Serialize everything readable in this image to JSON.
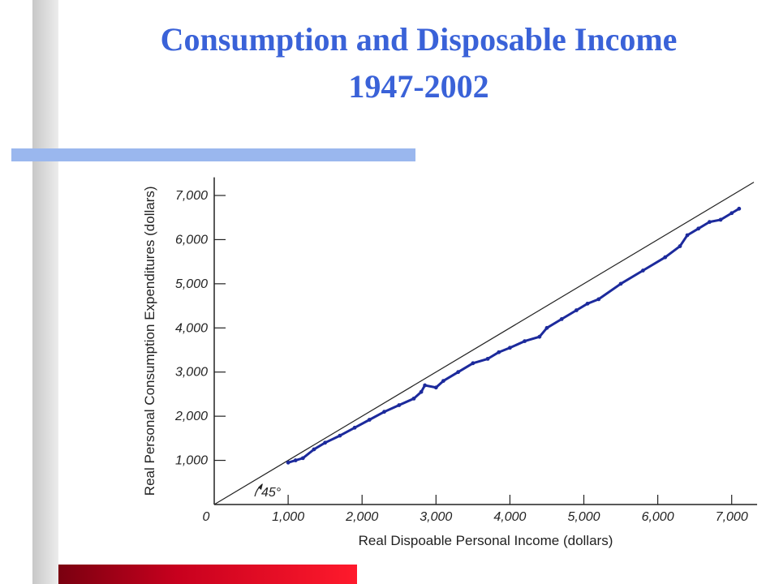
{
  "title": {
    "line1": "Consumption and Disposable Income",
    "line2": "1947-2002"
  },
  "colors": {
    "title": "#3a62d8",
    "accent_bar": "#9ab7ee",
    "series": "#1c2a9c",
    "red_bar": "#c8001e"
  },
  "chart_data": {
    "type": "line",
    "xlabel": "Real Dispoable Personal Income (dollars)",
    "ylabel": "Real Personal Consumption Expenditures (dollars)",
    "xlim": [
      0,
      7300
    ],
    "ylim": [
      0,
      7300
    ],
    "xticks": [
      1000,
      2000,
      3000,
      4000,
      5000,
      6000,
      7000
    ],
    "xtick_labels": [
      "1,000",
      "2,000",
      "3,000",
      "4,000",
      "5,000",
      "6,000",
      "7,000"
    ],
    "yticks": [
      1000,
      2000,
      3000,
      4000,
      5000,
      6000,
      7000
    ],
    "ytick_labels": [
      "1,000",
      "2,000",
      "3,000",
      "4,000",
      "5,000",
      "6,000",
      "7,000"
    ],
    "origin_label": "0",
    "reference_line": {
      "label": "45°",
      "slope": 1
    },
    "series": [
      {
        "x": [
          1000,
          1100,
          1200,
          1350,
          1500,
          1700,
          1900,
          2100,
          2300,
          2500,
          2700,
          2800,
          2850,
          3000,
          3100,
          3300,
          3500,
          3700,
          3850,
          4000,
          4200,
          4400,
          4500,
          4700,
          4900,
          5050,
          5200,
          5500,
          5800,
          6100,
          6300,
          6400,
          6550,
          6700,
          6850,
          7000,
          7100
        ],
        "y": [
          950,
          1000,
          1050,
          1250,
          1400,
          1560,
          1740,
          1920,
          2100,
          2250,
          2400,
          2550,
          2700,
          2650,
          2800,
          3000,
          3200,
          3300,
          3450,
          3550,
          3700,
          3800,
          4000,
          4200,
          4400,
          4550,
          4650,
          5000,
          5300,
          5600,
          5850,
          6100,
          6250,
          6400,
          6450,
          6600,
          6700
        ]
      }
    ]
  }
}
